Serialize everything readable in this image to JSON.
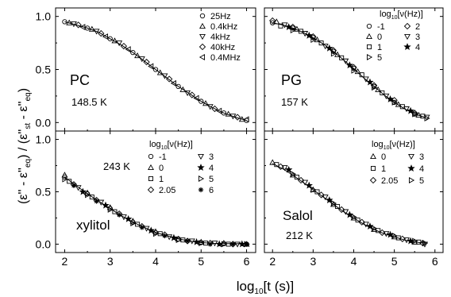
{
  "figure": {
    "ylabel": "(ε'' - ε''eq) / (ε''st - ε''eq)",
    "ylabel_parts": [
      "(ε''",
      " - ε''",
      "eq",
      ") / (ε''",
      "st",
      " - ε''",
      "eq",
      ")"
    ],
    "xlabel_parts": [
      "log",
      "10",
      "[t (s)]"
    ]
  },
  "chart_data": [
    {
      "type": "scatter",
      "panel": "top-left",
      "label": "PC",
      "temperature": "148.5 K",
      "xlim": [
        1.8,
        6.2
      ],
      "ylim": [
        -0.08,
        1.08
      ],
      "xticks": [
        "2",
        "3",
        "4",
        "5",
        "6"
      ],
      "yticks": [
        "0.0",
        "0.5",
        "1.0"
      ],
      "grid": false,
      "legend_layout": "single",
      "legend": [
        {
          "marker": "circle",
          "label": "25Hz"
        },
        {
          "marker": "triangle-up",
          "label": "0.4kHz"
        },
        {
          "marker": "triangle-down",
          "label": "4kHz"
        },
        {
          "marker": "diamond",
          "label": "40kHz"
        },
        {
          "marker": "triangle-left",
          "label": "0.4MHz"
        }
      ],
      "fit": {
        "x": [
          2.0,
          2.25,
          2.5,
          2.75,
          3.0,
          3.25,
          3.5,
          3.75,
          4.0,
          4.25,
          4.5,
          4.75,
          5.0,
          5.25,
          5.5,
          5.75,
          6.0
        ],
        "y": [
          0.95,
          0.92,
          0.89,
          0.85,
          0.79,
          0.73,
          0.66,
          0.58,
          0.5,
          0.42,
          0.34,
          0.27,
          0.2,
          0.14,
          0.09,
          0.05,
          0.02
        ]
      },
      "series": [
        {
          "marker": "circle",
          "x": [
            2.0,
            2.5,
            3.0,
            3.5,
            4.0,
            4.5,
            5.0,
            5.5,
            6.0
          ],
          "y": [
            0.95,
            0.89,
            0.79,
            0.66,
            0.5,
            0.34,
            0.2,
            0.09,
            0.02
          ]
        },
        {
          "marker": "triangle-up",
          "x": [
            2.1,
            2.6,
            3.1,
            3.6,
            4.1,
            4.6,
            5.1,
            5.6,
            5.9
          ],
          "y": [
            0.94,
            0.88,
            0.77,
            0.63,
            0.47,
            0.31,
            0.18,
            0.08,
            0.03
          ]
        },
        {
          "marker": "triangle-down",
          "x": [
            2.2,
            2.7,
            3.2,
            3.7,
            4.2,
            4.7,
            5.2,
            5.7
          ],
          "y": [
            0.93,
            0.86,
            0.75,
            0.6,
            0.44,
            0.28,
            0.15,
            0.06
          ]
        },
        {
          "marker": "diamond",
          "x": [
            2.3,
            2.8,
            3.3,
            3.8,
            4.3,
            4.8,
            5.3,
            5.8
          ],
          "y": [
            0.92,
            0.84,
            0.72,
            0.57,
            0.41,
            0.26,
            0.13,
            0.05
          ]
        },
        {
          "marker": "triangle-left",
          "x": [
            2.4,
            2.9,
            3.4,
            3.9,
            4.4,
            4.9,
            5.4,
            6.0
          ],
          "y": [
            0.9,
            0.81,
            0.69,
            0.53,
            0.37,
            0.23,
            0.11,
            0.03
          ]
        }
      ]
    },
    {
      "type": "scatter",
      "panel": "top-right",
      "label": "PG",
      "temperature": "157 K",
      "xlim": [
        1.8,
        6.2
      ],
      "ylim": [
        -0.08,
        1.08
      ],
      "xticks": [
        "2",
        "3",
        "4",
        "5",
        "6"
      ],
      "yticks": [],
      "grid": false,
      "legend_title_parts": [
        "log",
        "10",
        "[ν(Hz)]"
      ],
      "legend_layout": "two-column",
      "legend": [
        {
          "marker": "circle",
          "label": "-1"
        },
        {
          "marker": "diamond",
          "label": "2"
        },
        {
          "marker": "triangle-up",
          "label": "0"
        },
        {
          "marker": "triangle-down",
          "label": "3"
        },
        {
          "marker": "square",
          "label": "1"
        },
        {
          "marker": "star",
          "label": "4"
        },
        {
          "marker": "triangle-right",
          "label": "5"
        }
      ],
      "fit": {
        "x": [
          2.0,
          2.25,
          2.5,
          2.75,
          3.0,
          3.25,
          3.5,
          3.75,
          4.0,
          4.25,
          4.5,
          4.75,
          5.0,
          5.25,
          5.5,
          5.75
        ],
        "y": [
          0.94,
          0.92,
          0.89,
          0.85,
          0.8,
          0.74,
          0.67,
          0.59,
          0.51,
          0.42,
          0.34,
          0.26,
          0.19,
          0.13,
          0.08,
          0.05
        ]
      },
      "series": [
        {
          "marker": "circle",
          "x": [
            2.0,
            2.5,
            3.0,
            3.5,
            4.0,
            4.5,
            5.0,
            5.5
          ],
          "y": [
            0.94,
            0.89,
            0.8,
            0.67,
            0.51,
            0.34,
            0.19,
            0.08
          ]
        },
        {
          "marker": "triangle-up",
          "x": [
            2.1,
            2.6,
            3.1,
            3.6,
            4.1,
            4.6,
            5.1,
            5.6
          ],
          "y": [
            0.95,
            0.88,
            0.78,
            0.64,
            0.48,
            0.31,
            0.17,
            0.07
          ]
        },
        {
          "marker": "square",
          "x": [
            2.2,
            2.7,
            3.2,
            3.7,
            4.2,
            4.7,
            5.2,
            5.7
          ],
          "y": [
            0.91,
            0.86,
            0.75,
            0.61,
            0.45,
            0.28,
            0.15,
            0.06
          ]
        },
        {
          "marker": "diamond",
          "x": [
            2.0,
            2.5,
            3.0,
            3.5,
            4.0,
            4.5,
            5.0,
            5.5
          ],
          "y": [
            0.96,
            0.9,
            0.81,
            0.68,
            0.52,
            0.35,
            0.21,
            0.09
          ]
        },
        {
          "marker": "triangle-down",
          "x": [
            2.3,
            2.8,
            3.3,
            3.8,
            4.3,
            4.8,
            5.3,
            5.8
          ],
          "y": [
            0.92,
            0.84,
            0.72,
            0.58,
            0.41,
            0.25,
            0.13,
            0.05
          ]
        },
        {
          "marker": "star",
          "x": [
            2.4,
            2.9,
            3.4,
            3.9,
            4.4,
            4.9,
            5.4
          ],
          "y": [
            0.9,
            0.82,
            0.7,
            0.54,
            0.38,
            0.22,
            0.11
          ]
        },
        {
          "marker": "triangle-right",
          "x": [
            2.5,
            3.0,
            3.5,
            4.0,
            4.5,
            5.0,
            5.5,
            5.8
          ],
          "y": [
            0.87,
            0.78,
            0.65,
            0.49,
            0.33,
            0.19,
            0.08,
            0.04
          ]
        }
      ]
    },
    {
      "type": "scatter",
      "panel": "bottom-left",
      "label": "xylitol",
      "temperature": "243 K",
      "xlim": [
        1.8,
        6.2
      ],
      "ylim": [
        -0.08,
        1.08
      ],
      "xticks": [
        "2",
        "3",
        "4",
        "5",
        "6"
      ],
      "yticks": [
        "0.0",
        "0.5",
        "1.0"
      ],
      "grid": false,
      "legend_title_parts": [
        "log",
        "10",
        "[ν(Hz)]"
      ],
      "legend_layout": "two-column",
      "legend": [
        {
          "marker": "circle",
          "label": "-1"
        },
        {
          "marker": "triangle-down",
          "label": "3"
        },
        {
          "marker": "triangle-up",
          "label": "0"
        },
        {
          "marker": "star",
          "label": "4"
        },
        {
          "marker": "square",
          "label": "1"
        },
        {
          "marker": "triangle-right",
          "label": "5"
        },
        {
          "marker": "diamond",
          "label": "2.05"
        },
        {
          "marker": "asterisk",
          "label": "6"
        }
      ],
      "fit": {
        "x": [
          2.0,
          2.25,
          2.5,
          2.75,
          3.0,
          3.25,
          3.5,
          3.75,
          4.0,
          4.25,
          4.5,
          4.75,
          5.0,
          5.25,
          5.5,
          5.75,
          6.0
        ],
        "y": [
          0.64,
          0.56,
          0.48,
          0.41,
          0.34,
          0.27,
          0.21,
          0.16,
          0.11,
          0.08,
          0.05,
          0.03,
          0.015,
          0.008,
          0.005,
          0.004,
          0.004
        ]
      },
      "series": [
        {
          "marker": "circle",
          "x": [
            2.0,
            2.5,
            3.0,
            3.5,
            4.0,
            4.5,
            5.0,
            5.5,
            6.0
          ],
          "y": [
            0.64,
            0.48,
            0.34,
            0.21,
            0.11,
            0.05,
            0.015,
            0.005,
            0.0
          ]
        },
        {
          "marker": "triangle-up",
          "x": [
            2.0,
            2.5,
            3.0,
            3.5,
            4.0,
            4.5,
            5.0,
            5.5,
            6.0
          ],
          "y": [
            0.66,
            0.49,
            0.35,
            0.22,
            0.12,
            0.05,
            0.02,
            0.01,
            0.0
          ]
        },
        {
          "marker": "square",
          "x": [
            2.1,
            2.6,
            3.1,
            3.6,
            4.1,
            4.6,
            5.1,
            5.6
          ],
          "y": [
            0.6,
            0.45,
            0.31,
            0.19,
            0.1,
            0.04,
            0.01,
            0.0
          ]
        },
        {
          "marker": "diamond",
          "x": [
            2.2,
            2.7,
            3.2,
            3.7,
            4.2,
            4.7,
            5.2,
            5.7
          ],
          "y": [
            0.57,
            0.42,
            0.29,
            0.17,
            0.09,
            0.03,
            0.01,
            0.0
          ]
        },
        {
          "marker": "triangle-down",
          "x": [
            2.3,
            2.8,
            3.3,
            3.8,
            4.3,
            4.8,
            5.3,
            5.8
          ],
          "y": [
            0.54,
            0.4,
            0.26,
            0.15,
            0.07,
            0.03,
            0.01,
            0.0
          ]
        },
        {
          "marker": "star",
          "x": [
            2.4,
            2.9,
            3.4,
            3.9,
            4.4,
            4.9,
            5.4,
            5.9
          ],
          "y": [
            0.5,
            0.37,
            0.24,
            0.13,
            0.06,
            0.02,
            0.0,
            0.0
          ]
        },
        {
          "marker": "triangle-right",
          "x": [
            2.0,
            2.5,
            3.0,
            3.5,
            4.0,
            4.5,
            5.0,
            5.5,
            6.0
          ],
          "y": [
            0.62,
            0.47,
            0.33,
            0.2,
            0.1,
            0.04,
            0.01,
            0.0,
            0.0
          ]
        },
        {
          "marker": "asterisk",
          "x": [
            2.2,
            2.7,
            3.2,
            3.7,
            4.2,
            4.7,
            5.2,
            5.7,
            6.0
          ],
          "y": [
            0.56,
            0.41,
            0.28,
            0.16,
            0.08,
            0.03,
            0.0,
            0.0,
            0.0
          ]
        }
      ]
    },
    {
      "type": "scatter",
      "panel": "bottom-right",
      "label": "Salol",
      "temperature": "212 K",
      "xlim": [
        1.8,
        6.2
      ],
      "ylim": [
        -0.08,
        1.08
      ],
      "xticks": [
        "2",
        "3",
        "4",
        "5",
        "6"
      ],
      "yticks": [],
      "grid": false,
      "legend_title_parts": [
        "log",
        "10",
        "[ν(Hz)]"
      ],
      "legend_layout": "two-column",
      "legend": [
        {
          "marker": "triangle-up",
          "label": "0"
        },
        {
          "marker": "triangle-down",
          "label": "3"
        },
        {
          "marker": "square",
          "label": "1"
        },
        {
          "marker": "star",
          "label": "4"
        },
        {
          "marker": "diamond",
          "label": "2.05"
        },
        {
          "marker": "triangle-right",
          "label": "5"
        }
      ],
      "fit": {
        "x": [
          2.0,
          2.25,
          2.5,
          2.75,
          3.0,
          3.25,
          3.5,
          3.75,
          4.0,
          4.25,
          4.5,
          4.75,
          5.0,
          5.25,
          5.5,
          5.75
        ],
        "y": [
          0.77,
          0.72,
          0.66,
          0.59,
          0.52,
          0.45,
          0.38,
          0.31,
          0.25,
          0.19,
          0.14,
          0.1,
          0.07,
          0.04,
          0.02,
          0.01
        ]
      },
      "series": [
        {
          "marker": "triangle-up",
          "x": [
            2.0,
            2.5,
            3.0,
            3.5,
            4.0,
            4.5,
            5.0,
            5.5
          ],
          "y": [
            0.78,
            0.66,
            0.52,
            0.38,
            0.25,
            0.14,
            0.07,
            0.02
          ]
        },
        {
          "marker": "square",
          "x": [
            2.1,
            2.6,
            3.1,
            3.6,
            4.1,
            4.6,
            5.1,
            5.6
          ],
          "y": [
            0.76,
            0.64,
            0.5,
            0.36,
            0.23,
            0.13,
            0.06,
            0.02
          ]
        },
        {
          "marker": "diamond",
          "x": [
            2.2,
            2.7,
            3.2,
            3.7,
            4.2,
            4.7,
            5.2,
            5.7
          ],
          "y": [
            0.74,
            0.61,
            0.47,
            0.33,
            0.21,
            0.11,
            0.05,
            0.01
          ]
        },
        {
          "marker": "triangle-down",
          "x": [
            2.3,
            2.8,
            3.3,
            3.8,
            4.3,
            4.8,
            5.3,
            5.75
          ],
          "y": [
            0.73,
            0.59,
            0.45,
            0.31,
            0.19,
            0.1,
            0.04,
            0.0
          ]
        },
        {
          "marker": "star",
          "x": [
            2.4,
            2.9,
            3.4,
            3.9,
            4.4,
            4.9,
            5.4
          ],
          "y": [
            0.71,
            0.56,
            0.42,
            0.28,
            0.17,
            0.09,
            0.03
          ]
        },
        {
          "marker": "triangle-right",
          "x": [
            2.5,
            3.0,
            3.5,
            4.0,
            4.5,
            5.0,
            5.5,
            5.75
          ],
          "y": [
            0.67,
            0.52,
            0.39,
            0.26,
            0.15,
            0.08,
            0.03,
            0.01
          ]
        }
      ]
    }
  ]
}
